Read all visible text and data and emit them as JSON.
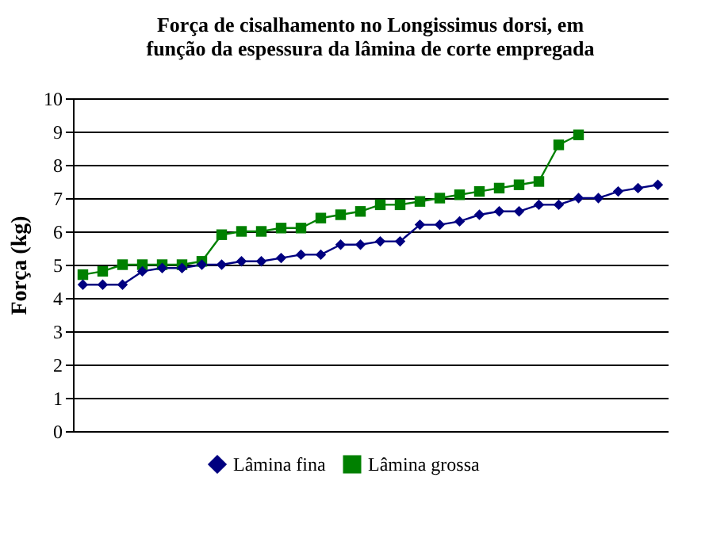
{
  "chart_data": {
    "type": "line",
    "title": "Força de cisalhamento no Longissimus dorsi,  em\nfunção da espessura da lâmina de corte empregada",
    "ylabel": "Força (kg)",
    "categories": [
      null,
      null,
      null,
      null,
      null,
      null,
      null,
      null,
      null,
      null,
      null,
      null,
      null,
      null,
      null,
      null,
      null,
      null,
      null,
      null,
      null,
      null,
      null,
      null,
      null,
      null,
      null,
      null,
      null,
      null
    ],
    "series": [
      {
        "name": "Lâmina fina",
        "color": "#000080",
        "marker": "diamond",
        "values": [
          4.4,
          4.4,
          4.4,
          4.8,
          4.9,
          4.9,
          5.0,
          5.0,
          5.1,
          5.1,
          5.2,
          5.3,
          5.3,
          5.6,
          5.6,
          5.7,
          5.7,
          6.2,
          6.2,
          6.3,
          6.5,
          6.6,
          6.6,
          6.8,
          6.8,
          7.0,
          7.0,
          7.2,
          7.3,
          7.4
        ]
      },
      {
        "name": "Lâmina grossa",
        "color": "#008000",
        "marker": "square",
        "values": [
          4.7,
          4.8,
          5.0,
          5.0,
          5.0,
          5.0,
          5.1,
          5.9,
          6.0,
          6.0,
          6.1,
          6.1,
          6.4,
          6.5,
          6.6,
          6.8,
          6.8,
          6.9,
          7.0,
          7.1,
          7.2,
          7.3,
          7.4,
          7.5,
          8.6,
          8.9,
          null,
          null,
          null,
          null
        ]
      }
    ],
    "ylim": [
      0,
      10
    ],
    "yticks": [
      0,
      1,
      2,
      3,
      4,
      5,
      6,
      7,
      8,
      9,
      10
    ],
    "grid": "y",
    "legend": "bottom",
    "tick_labels": "y"
  }
}
